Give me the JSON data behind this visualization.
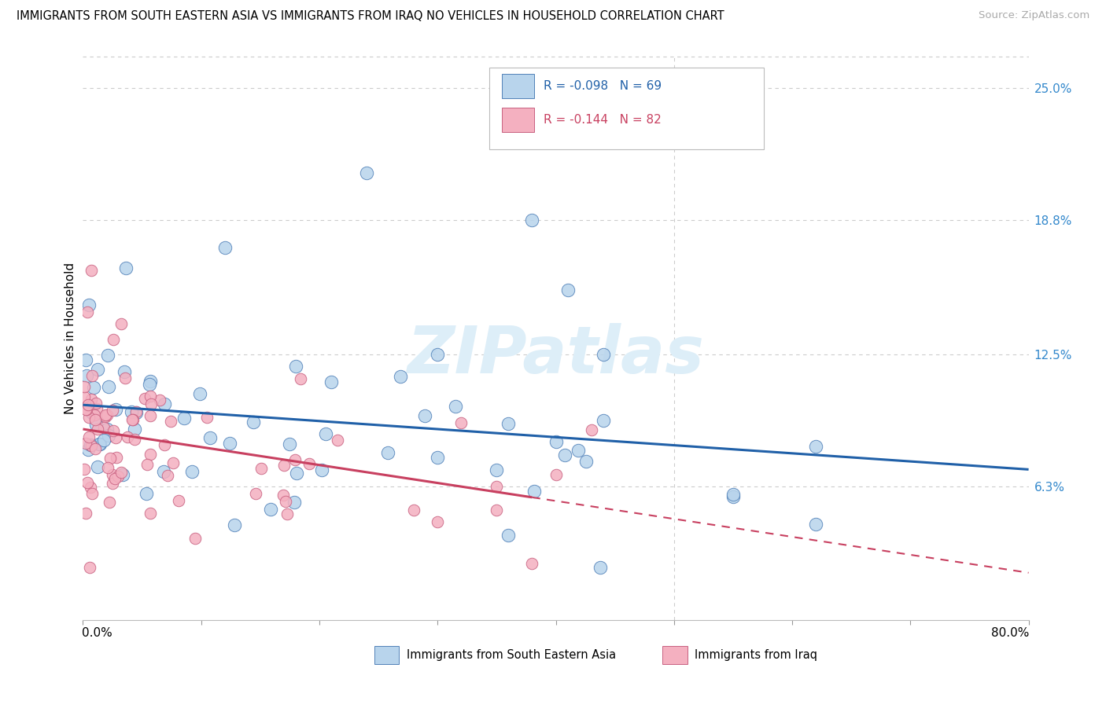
{
  "title": "IMMIGRANTS FROM SOUTH EASTERN ASIA VS IMMIGRANTS FROM IRAQ NO VEHICLES IN HOUSEHOLD CORRELATION CHART",
  "source": "Source: ZipAtlas.com",
  "ylabel": "No Vehicles in Household",
  "ytick_labels": [
    "25.0%",
    "18.8%",
    "12.5%",
    "6.3%"
  ],
  "ytick_values": [
    0.25,
    0.188,
    0.125,
    0.063
  ],
  "legend_blue_r": "-0.098",
  "legend_blue_n": "69",
  "legend_pink_r": "-0.144",
  "legend_pink_n": "82",
  "legend_label_blue": "Immigrants from South Eastern Asia",
  "legend_label_pink": "Immigrants from Iraq",
  "color_blue_fill": "#b8d4ec",
  "color_blue_edge": "#5080b8",
  "color_blue_line": "#2060a8",
  "color_pink_fill": "#f4b0c0",
  "color_pink_edge": "#c86080",
  "color_pink_line": "#c84060",
  "watermark_color": "#ddeef8",
  "bg_color": "#ffffff",
  "xlim": [
    0.0,
    0.8
  ],
  "ylim": [
    0.0,
    0.265
  ],
  "blue_intercept": 0.092,
  "blue_slope": -0.02,
  "pink_intercept": 0.088,
  "pink_slope": -0.095
}
